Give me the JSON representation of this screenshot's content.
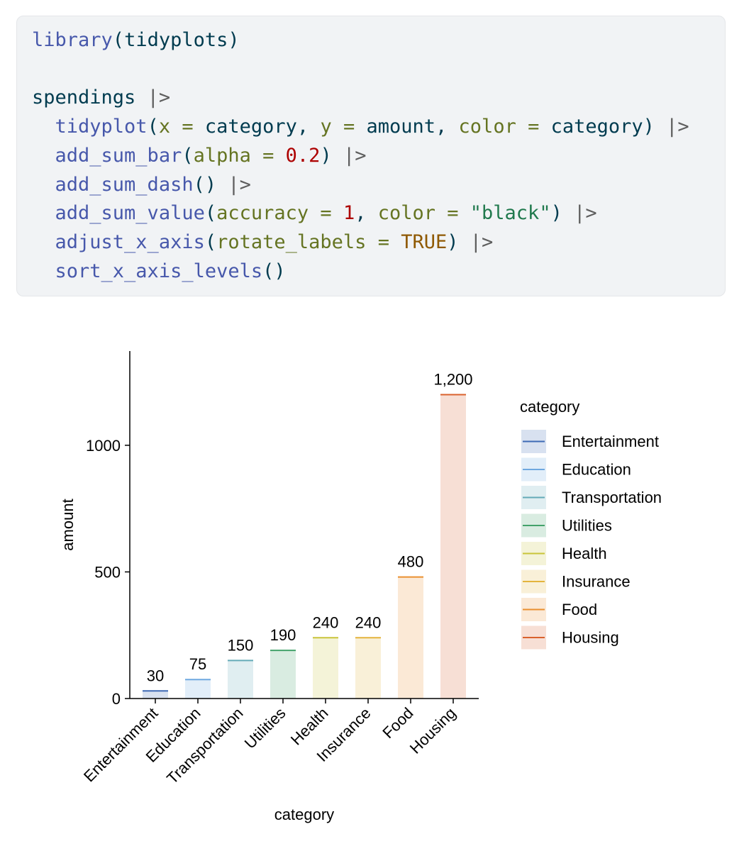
{
  "code": {
    "line1": [
      "library",
      "(",
      "tidyplots",
      ")"
    ],
    "line2": [
      "spendings",
      " |>"
    ],
    "line3": [
      "  ",
      "tidyplot",
      "(",
      "x",
      " = ",
      "category",
      ", ",
      "y",
      " = ",
      "amount",
      ", ",
      "color",
      " = ",
      "category",
      ") ",
      "|>"
    ],
    "line4": [
      "  ",
      "add_sum_bar",
      "(",
      "alpha",
      " = ",
      "0.2",
      ") ",
      "|>"
    ],
    "line5": [
      "  ",
      "add_sum_dash",
      "() ",
      "|>"
    ],
    "line6": [
      "  ",
      "add_sum_value",
      "(",
      "accuracy",
      " = ",
      "1",
      ", ",
      "color",
      " = ",
      "\"black\"",
      ") ",
      "|>"
    ],
    "line7": [
      "  ",
      "adjust_x_axis",
      "(",
      "rotate_labels",
      " = ",
      "TRUE",
      ") ",
      "|>"
    ],
    "line8": [
      "  ",
      "sort_x_axis_levels",
      "()"
    ]
  },
  "chart_data": {
    "type": "bar",
    "categories": [
      "Entertainment",
      "Education",
      "Transportation",
      "Utilities",
      "Health",
      "Insurance",
      "Food",
      "Housing"
    ],
    "values": [
      30,
      75,
      150,
      190,
      240,
      240,
      480,
      1200
    ],
    "value_labels": [
      "30",
      "75",
      "150",
      "190",
      "240",
      "240",
      "480",
      "1,200"
    ],
    "colors": [
      "#3e6ab5",
      "#6fa8e0",
      "#64abb8",
      "#43a26a",
      "#c9c43a",
      "#e3b43d",
      "#ea9030",
      "#d9612d"
    ],
    "xlabel": "category",
    "ylabel": "amount",
    "ylim": [
      0,
      1300
    ],
    "yticks": [
      0,
      500,
      1000
    ],
    "legend_title": "category",
    "legend_position": "right",
    "grid": false,
    "bar_alpha": 0.2
  }
}
